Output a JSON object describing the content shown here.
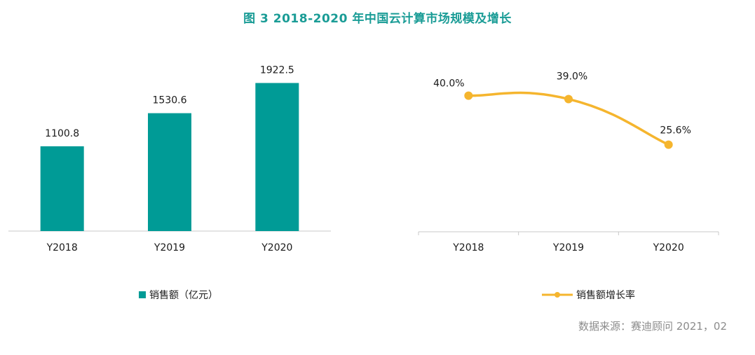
{
  "title": "图  3   2018-2020 年中国云计算市场规模及增长",
  "source": "数据来源：赛迪顾问    2021，02",
  "colors": {
    "title": "#1a9c96",
    "bar": "#009b96",
    "line": "#f5b52e",
    "axis": "#c8c8c8"
  },
  "chart_data": [
    {
      "type": "bar",
      "categories": [
        "Y2018",
        "Y2019",
        "Y2020"
      ],
      "series": [
        {
          "name": "销售额（亿元）",
          "values": [
            1100.8,
            1530.6,
            1922.5
          ]
        }
      ],
      "data_labels": [
        "1100.8",
        "1530.6",
        "1922.5"
      ],
      "ylim": [
        0,
        2200
      ],
      "legend": "bottom",
      "grid": false
    },
    {
      "type": "line",
      "categories": [
        "Y2018",
        "Y2019",
        "Y2020"
      ],
      "series": [
        {
          "name": "销售额增长率",
          "values": [
            40.0,
            39.0,
            25.6
          ]
        }
      ],
      "data_labels": [
        "40.0%",
        "39.0%",
        "25.6%"
      ],
      "ylim": [
        0,
        50
      ],
      "legend": "bottom",
      "grid": false
    }
  ]
}
